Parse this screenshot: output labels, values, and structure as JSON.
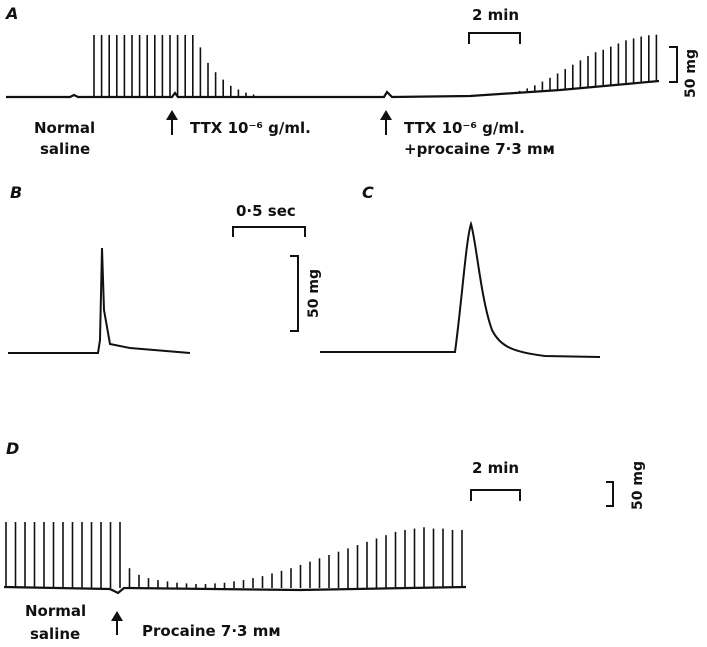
{
  "panels": {
    "a": {
      "letter": "A",
      "time_scale": "2 min",
      "force_scale": "50 mg",
      "label_normal": [
        "Normal",
        "saline"
      ],
      "label_ttx": "TTX 10⁻⁶ g/ml.",
      "label_ttx2": [
        "TTX 10⁻⁶ g/ml.",
        "+procaine 7·3 mᴍ"
      ]
    },
    "b": {
      "letter": "B",
      "time_scale": "0·5 sec",
      "force_scale": "50 mg"
    },
    "c": {
      "letter": "C"
    },
    "d": {
      "letter": "D",
      "time_scale": "2 min",
      "force_scale": "50 mg",
      "label_normal": [
        "Normal",
        "saline"
      ],
      "label_procaine": "Procaine 7·3 mᴍ"
    }
  },
  "colors": {
    "ink": "#111111",
    "background": "#ffffff"
  },
  "traces": {
    "a": {
      "twitch_amplitudes": [
        1,
        1,
        1,
        1,
        1,
        1,
        1,
        1,
        1,
        1,
        1,
        1,
        1,
        1,
        0.8,
        0.55,
        0.4,
        0.28,
        0.18,
        0.12,
        0.07,
        0.04,
        0,
        0,
        0,
        0,
        0,
        0,
        0,
        0,
        0,
        0,
        0,
        0,
        0,
        0,
        0,
        0,
        0,
        0,
        0,
        0,
        0,
        0,
        0,
        0,
        0,
        0,
        0,
        0,
        0,
        0,
        0,
        0,
        0,
        0,
        0.03,
        0.06,
        0.1,
        0.15,
        0.2,
        0.26,
        0.32,
        0.38,
        0.44,
        0.5,
        0.55,
        0.58,
        0.62,
        0.66,
        0.7,
        0.72,
        0.74,
        0.75,
        0.75
      ]
    },
    "b": {
      "peak_time_relative": 0.2,
      "duration_relative": 0.15
    },
    "c": {
      "peak_time_relative": 0.2,
      "duration_relative": 0.35
    },
    "d": {
      "twitch_amplitudes": [
        1,
        1,
        1,
        1,
        1,
        1,
        1,
        1,
        1,
        1,
        1,
        1,
        1,
        0.3,
        0.2,
        0.15,
        0.12,
        0.1,
        0.08,
        0.07,
        0.06,
        0.06,
        0.07,
        0.08,
        0.1,
        0.12,
        0.15,
        0.18,
        0.22,
        0.26,
        0.3,
        0.35,
        0.4,
        0.45,
        0.5,
        0.55,
        0.6,
        0.65,
        0.7,
        0.75,
        0.8,
        0.85,
        0.88,
        0.9,
        0.92,
        0.9,
        0.9,
        0.88,
        0.88
      ]
    }
  }
}
